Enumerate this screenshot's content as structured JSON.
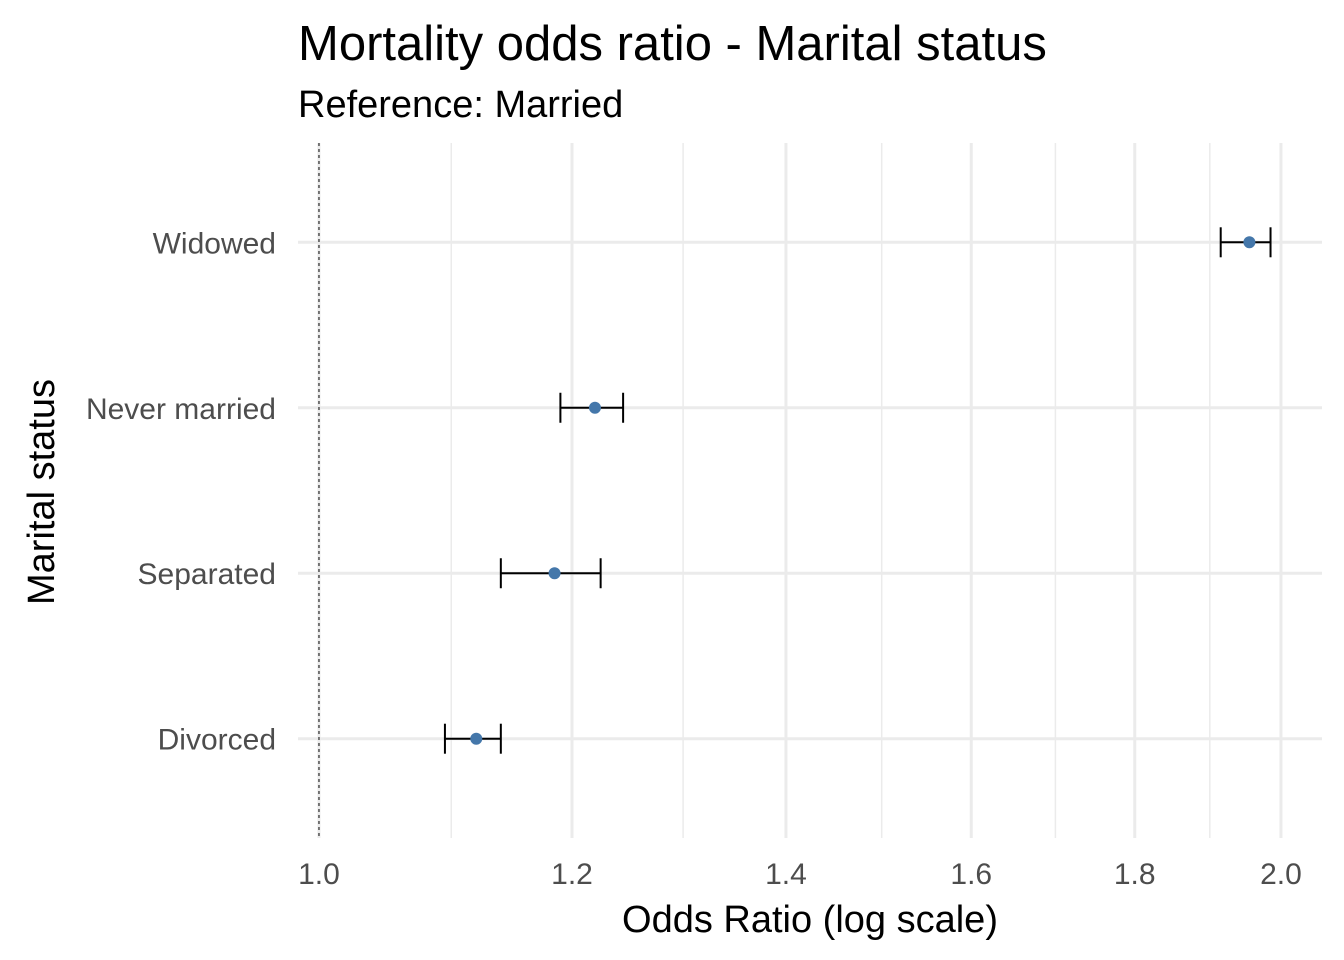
{
  "chart_data": {
    "type": "scatter",
    "title": "Mortality odds ratio - Marital status",
    "subtitle": "Reference: Married",
    "xlabel": "Odds Ratio (log scale)",
    "ylabel": "Marital status",
    "x_scale": "log",
    "xlim": [
      0.985,
      2.06
    ],
    "x_ticks": [
      1.0,
      1.2,
      1.4,
      1.6,
      1.8,
      2.0
    ],
    "x_tick_labels": [
      "1.0",
      "1.2",
      "1.4",
      "1.6",
      "1.8",
      "2.0"
    ],
    "x_minor_ticks": [
      1.1,
      1.3,
      1.5,
      1.7,
      1.9
    ],
    "reference_line": 1.0,
    "categories": [
      "Divorced",
      "Separated",
      "Never married",
      "Widowed"
    ],
    "series": [
      {
        "values": [
          1.12,
          1.185,
          1.22,
          1.955
        ],
        "lower": [
          1.095,
          1.14,
          1.19,
          1.915
        ],
        "upper": [
          1.14,
          1.225,
          1.245,
          1.985
        ]
      }
    ],
    "point_color": "#4477aa",
    "grid": true
  }
}
